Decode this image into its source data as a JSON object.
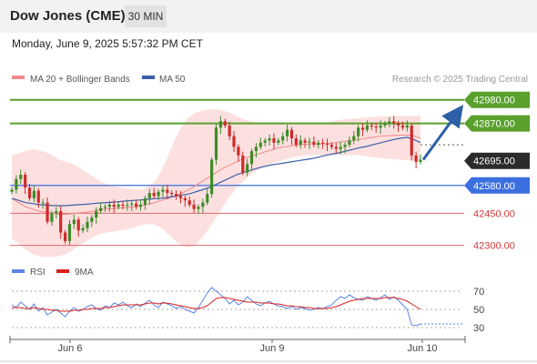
{
  "header": {
    "title": "Dow Jones (CME)",
    "interval": "30 MIN",
    "datetime": "Monday, June 9, 2025 5:57:32 PM CET"
  },
  "legend": {
    "bollinger": "MA 20 + Bollinger Bands",
    "ma50": "MA 50",
    "credit": "Research © 2025 Trading Central",
    "rsi": "RSI",
    "rsi_ma": "9MA"
  },
  "colors": {
    "bollinger": "#ef8a8a",
    "band_fill": "#fbd5d5",
    "ma50": "#3a5fa8",
    "resistance": "#5aa02c",
    "support": "#3b6fe0",
    "target": "#d63a3a",
    "candle_up": "#3d8c28",
    "candle_down": "#d12a2a",
    "arrow": "#2c5fa8",
    "rsi": "#5a85e0",
    "rsi_ma": "#d92020"
  },
  "chart_data": [
    {
      "type": "candlestick",
      "x_labels": [
        "Jun 6",
        "Jun 9",
        "Jun 10"
      ],
      "ylim": [
        42260,
        43000
      ],
      "levels": [
        {
          "value": 42980,
          "label": "42980.00",
          "kind": "resistance"
        },
        {
          "value": 42870,
          "label": "42870.00",
          "kind": "resistance"
        },
        {
          "value": 42695,
          "label": "42695.00",
          "kind": "last"
        },
        {
          "value": 42580,
          "label": "42580.00",
          "kind": "pivot"
        },
        {
          "value": 42450,
          "label": "42450.00",
          "kind": "support"
        },
        {
          "value": 42300,
          "label": "42300.00",
          "kind": "support"
        }
      ],
      "forecast": {
        "from": 42700,
        "to": 42950
      },
      "close": [
        42560,
        42610,
        42630,
        42570,
        42520,
        42555,
        42500,
        42500,
        42410,
        42450,
        42460,
        42360,
        42320,
        42400,
        42420,
        42370,
        42380,
        42410,
        42430,
        42460,
        42475,
        42480,
        42490,
        42480,
        42490,
        42485,
        42490,
        42495,
        42480,
        42490,
        42520,
        42545,
        42530,
        42550,
        42560,
        42545,
        42540,
        42530,
        42520,
        42510,
        42490,
        42470,
        42480,
        42500,
        42540,
        42700,
        42850,
        42880,
        42860,
        42810,
        42760,
        42720,
        42640,
        42680,
        42740,
        42760,
        42780,
        42790,
        42800,
        42780,
        42790,
        42810,
        42840,
        42800,
        42770,
        42790,
        42780,
        42785,
        42770,
        42780,
        42775,
        42770,
        42760,
        42750,
        42760,
        42770,
        42790,
        42810,
        42850,
        42840,
        42860,
        42855,
        42850,
        42860,
        42870,
        42880,
        42870,
        42860,
        42850,
        42860,
        42720,
        42690,
        42700
      ],
      "ma20": [
        42520,
        42500,
        42480,
        42470,
        42460,
        42455,
        42450,
        42445,
        42445,
        42448,
        42452,
        42455,
        42460,
        42468,
        42470,
        42472,
        42475,
        42478,
        42480,
        42485,
        42492,
        42500,
        42510,
        42520,
        42530,
        42545,
        42560,
        42580,
        42600,
        42620,
        42640,
        42660,
        42675,
        42690,
        42705,
        42715,
        42725,
        42735,
        42745,
        42755,
        42760,
        42765,
        42770,
        42772,
        42774,
        42774,
        42775,
        42778,
        42782,
        42786,
        42790,
        42795,
        42800,
        42805,
        42810,
        42812,
        42814,
        42815,
        42815,
        42812,
        42800
      ],
      "bb_upper": [
        42720,
        42730,
        42740,
        42750,
        42745,
        42735,
        42720,
        42700,
        42690,
        42680,
        42660,
        42640,
        42620,
        42600,
        42585,
        42575,
        42570,
        42565,
        42560,
        42560,
        42575,
        42600,
        42650,
        42720,
        42800,
        42860,
        42900,
        42920,
        42930,
        42935,
        42935,
        42930,
        42920,
        42905,
        42890,
        42880,
        42875,
        42872,
        42870,
        42868,
        42866,
        42865,
        42865,
        42866,
        42868,
        42870,
        42875,
        42880,
        42885,
        42890,
        42893,
        42895,
        42898,
        42900,
        42902,
        42904,
        42905,
        42905,
        42905,
        42905,
        42905
      ],
      "bb_lower": [
        42330,
        42310,
        42280,
        42260,
        42250,
        42245,
        42245,
        42250,
        42260,
        42280,
        42300,
        42320,
        42340,
        42355,
        42360,
        42365,
        42370,
        42375,
        42385,
        42395,
        42400,
        42395,
        42380,
        42350,
        42320,
        42300,
        42290,
        42300,
        42340,
        42380,
        42430,
        42480,
        42530,
        42570,
        42600,
        42630,
        42650,
        42665,
        42680,
        42690,
        42700,
        42710,
        42715,
        42720,
        42722,
        42722,
        42722,
        42722,
        42722,
        42722,
        42722,
        42720,
        42716,
        42712,
        42708,
        42705,
        42702,
        42700,
        42698,
        42696,
        42694
      ],
      "ma50": [
        42520,
        42510,
        42500,
        42495,
        42490,
        42488,
        42486,
        42485,
        42486,
        42488,
        42490,
        42492,
        42495,
        42498,
        42500,
        42502,
        42505,
        42508,
        42510,
        42512,
        42515,
        42518,
        42520,
        42525,
        42530,
        42535,
        42540,
        42550,
        42560,
        42570,
        42585,
        42600,
        42615,
        42630,
        42640,
        42650,
        42660,
        42668,
        42675,
        42680,
        42685,
        42690,
        42695,
        42700,
        42705,
        42712,
        42720,
        42726,
        42732,
        42740,
        42748,
        42756,
        42762,
        42770,
        42778,
        42786,
        42794,
        42800,
        42805,
        42795,
        42780
      ]
    },
    {
      "type": "line",
      "name": "RSI",
      "yticks": [
        70,
        50,
        30
      ],
      "ylim": [
        20,
        80
      ],
      "rsi": [
        55,
        52,
        58,
        54,
        50,
        56,
        48,
        52,
        44,
        47,
        50,
        46,
        42,
        48,
        52,
        48,
        50,
        53,
        55,
        51,
        49,
        54,
        52,
        57,
        55,
        58,
        54,
        52,
        56,
        53,
        57,
        60,
        55,
        52,
        58,
        56,
        54,
        51,
        53,
        50,
        48,
        46,
        52,
        60,
        68,
        74,
        70,
        66,
        62,
        56,
        60,
        55,
        58,
        64,
        60,
        56,
        54,
        57,
        59,
        56,
        54,
        53,
        51,
        53,
        50,
        52,
        51,
        49,
        50,
        52,
        51,
        53,
        55,
        60,
        64,
        62,
        66,
        63,
        61,
        60,
        64,
        62,
        60,
        63,
        66,
        61,
        64,
        60,
        55,
        50,
        33,
        32,
        34
      ],
      "rsi_ma": [
        52,
        52,
        52,
        51,
        51,
        52,
        51,
        50,
        50,
        49,
        49,
        48,
        48,
        48,
        49,
        49,
        50,
        50,
        51,
        51,
        51,
        52,
        52,
        53,
        54,
        55,
        55,
        55,
        55,
        55,
        56,
        57,
        57,
        56,
        57,
        57,
        56,
        55,
        54,
        53,
        52,
        51,
        51,
        52,
        54,
        58,
        62,
        63,
        63,
        62,
        61,
        60,
        59,
        58,
        58,
        58,
        57,
        57,
        57,
        56,
        56,
        55,
        54,
        54,
        53,
        53,
        52,
        52,
        51,
        51,
        51,
        51,
        52,
        53,
        55,
        57,
        59,
        60,
        61,
        62,
        62,
        62,
        62,
        62,
        63,
        63,
        63,
        62,
        61,
        59,
        56,
        53,
        50
      ]
    }
  ]
}
